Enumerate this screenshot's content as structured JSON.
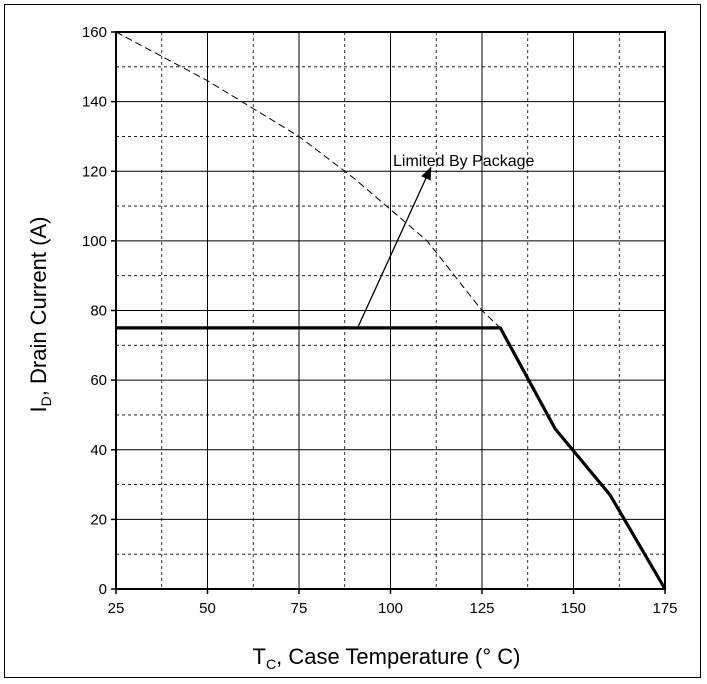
{
  "chart_data": {
    "type": "line",
    "title": "",
    "xlabel": {
      "main": "T",
      "sub": "C",
      "rest": ", Case Temperature (° C)"
    },
    "ylabel": {
      "main": "I",
      "sub": "D",
      "rest": ",  Drain Current (A)"
    },
    "xlim": [
      25,
      175
    ],
    "ylim": [
      0,
      160
    ],
    "x_ticks": [
      25,
      50,
      75,
      100,
      125,
      150,
      175
    ],
    "y_ticks": [
      0,
      20,
      40,
      60,
      80,
      100,
      120,
      140,
      160
    ],
    "grid": true,
    "minor_grid_dashed": true,
    "series": [
      {
        "style": "solid-bold",
        "color": "#000000",
        "x": [
          25,
          130,
          145,
          160,
          175
        ],
        "y": [
          75,
          75,
          46,
          27,
          0
        ]
      },
      {
        "style": "dashed-thin",
        "color": "#000000",
        "x": [
          25,
          50,
          75,
          90,
          110,
          125,
          130
        ],
        "y": [
          160,
          146,
          130,
          118,
          100,
          80,
          75
        ]
      }
    ],
    "annotation": {
      "text": "Limited By Package",
      "text_at": {
        "x": 120,
        "y": 123
      },
      "arrow_from": {
        "x": 91,
        "y": 75
      },
      "arrow_to": {
        "x": 111,
        "y": 121
      }
    }
  }
}
